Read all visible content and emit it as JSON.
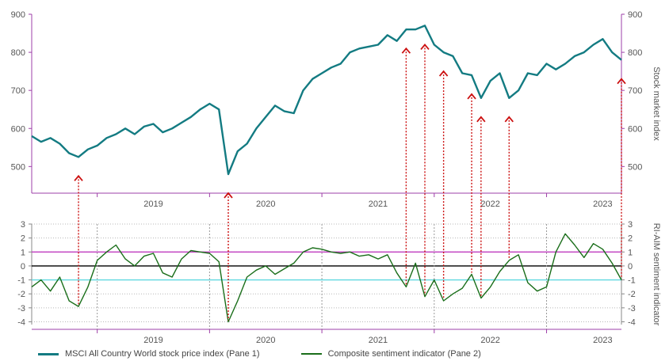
{
  "chart_data": [
    {
      "type": "line",
      "pane": 1,
      "ylabel": "Stock market index",
      "ylim": [
        430,
        900
      ],
      "yticks": [
        500,
        600,
        700,
        800,
        900
      ],
      "x_tick_labels": [
        "2019",
        "2020",
        "2021",
        "2022",
        "2023"
      ],
      "xlim": [
        "2018-06",
        "2023-09"
      ],
      "series": [
        {
          "name": "MSCI All Country World stock price index (Pane 1)",
          "color": "#137b82",
          "points": [
            [
              "2018-06",
              580
            ],
            [
              "2018-07",
              565
            ],
            [
              "2018-08",
              575
            ],
            [
              "2018-09",
              560
            ],
            [
              "2018-10",
              535
            ],
            [
              "2018-11",
              525
            ],
            [
              "2018-12",
              545
            ],
            [
              "2019-01",
              555
            ],
            [
              "2019-02",
              575
            ],
            [
              "2019-03",
              585
            ],
            [
              "2019-04",
              600
            ],
            [
              "2019-05",
              585
            ],
            [
              "2019-06",
              605
            ],
            [
              "2019-07",
              612
            ],
            [
              "2019-08",
              590
            ],
            [
              "2019-09",
              600
            ],
            [
              "2019-10",
              615
            ],
            [
              "2019-11",
              630
            ],
            [
              "2019-12",
              650
            ],
            [
              "2020-01",
              665
            ],
            [
              "2020-02",
              650
            ],
            [
              "2020-03",
              480
            ],
            [
              "2020-04",
              540
            ],
            [
              "2020-05",
              560
            ],
            [
              "2020-06",
              600
            ],
            [
              "2020-07",
              630
            ],
            [
              "2020-08",
              660
            ],
            [
              "2020-09",
              645
            ],
            [
              "2020-10",
              640
            ],
            [
              "2020-11",
              700
            ],
            [
              "2020-12",
              730
            ],
            [
              "2021-01",
              745
            ],
            [
              "2021-02",
              760
            ],
            [
              "2021-03",
              770
            ],
            [
              "2021-04",
              800
            ],
            [
              "2021-05",
              810
            ],
            [
              "2021-06",
              815
            ],
            [
              "2021-07",
              820
            ],
            [
              "2021-08",
              845
            ],
            [
              "2021-09",
              830
            ],
            [
              "2021-10",
              860
            ],
            [
              "2021-11",
              860
            ],
            [
              "2021-12",
              870
            ],
            [
              "2022-01",
              820
            ],
            [
              "2022-02",
              800
            ],
            [
              "2022-03",
              790
            ],
            [
              "2022-04",
              745
            ],
            [
              "2022-05",
              740
            ],
            [
              "2022-06",
              680
            ],
            [
              "2022-07",
              725
            ],
            [
              "2022-08",
              745
            ],
            [
              "2022-09",
              680
            ],
            [
              "2022-10",
              700
            ],
            [
              "2022-11",
              745
            ],
            [
              "2022-12",
              740
            ],
            [
              "2023-01",
              770
            ],
            [
              "2023-02",
              755
            ],
            [
              "2023-03",
              770
            ],
            [
              "2023-04",
              790
            ],
            [
              "2023-05",
              800
            ],
            [
              "2023-06",
              820
            ],
            [
              "2023-07",
              835
            ],
            [
              "2023-08",
              800
            ],
            [
              "2023-09",
              780
            ]
          ]
        }
      ]
    },
    {
      "type": "line",
      "pane": 2,
      "ylabel": "RI-AIM sentiment indicator",
      "ylim": [
        -4.2,
        3
      ],
      "yticks": [
        -4,
        -3,
        -2,
        -1,
        0,
        1,
        2,
        3
      ],
      "x_tick_labels": [
        "2019",
        "2020",
        "2021",
        "2022",
        "2023"
      ],
      "xlim": [
        "2018-06",
        "2023-09"
      ],
      "reference_lines": [
        {
          "value": 1,
          "color": "#c03cc0"
        },
        {
          "value": 0,
          "color": "#000000"
        },
        {
          "value": -1,
          "color": "#5fd8e0"
        }
      ],
      "series": [
        {
          "name": "Composite sentiment indicator (Pane 2)",
          "color": "#1a6e1a",
          "points": [
            [
              "2018-06",
              -1.5
            ],
            [
              "2018-07",
              -1.0
            ],
            [
              "2018-08",
              -1.8
            ],
            [
              "2018-09",
              -0.8
            ],
            [
              "2018-10",
              -2.5
            ],
            [
              "2018-11",
              -2.9
            ],
            [
              "2018-12",
              -1.5
            ],
            [
              "2019-01",
              0.4
            ],
            [
              "2019-02",
              1.0
            ],
            [
              "2019-03",
              1.5
            ],
            [
              "2019-04",
              0.5
            ],
            [
              "2019-05",
              0.0
            ],
            [
              "2019-06",
              0.7
            ],
            [
              "2019-07",
              0.9
            ],
            [
              "2019-08",
              -0.5
            ],
            [
              "2019-09",
              -0.8
            ],
            [
              "2019-10",
              0.5
            ],
            [
              "2019-11",
              1.1
            ],
            [
              "2019-12",
              1.0
            ],
            [
              "2020-01",
              0.9
            ],
            [
              "2020-02",
              0.3
            ],
            [
              "2020-03",
              -4.0
            ],
            [
              "2020-04",
              -2.5
            ],
            [
              "2020-05",
              -0.8
            ],
            [
              "2020-06",
              -0.3
            ],
            [
              "2020-07",
              0.0
            ],
            [
              "2020-08",
              -0.6
            ],
            [
              "2020-09",
              -0.2
            ],
            [
              "2020-10",
              0.2
            ],
            [
              "2020-11",
              1.0
            ],
            [
              "2020-12",
              1.3
            ],
            [
              "2021-01",
              1.2
            ],
            [
              "2021-02",
              1.0
            ],
            [
              "2021-03",
              0.9
            ],
            [
              "2021-04",
              1.0
            ],
            [
              "2021-05",
              0.7
            ],
            [
              "2021-06",
              0.8
            ],
            [
              "2021-07",
              0.5
            ],
            [
              "2021-08",
              0.8
            ],
            [
              "2021-09",
              -0.5
            ],
            [
              "2021-10",
              -1.5
            ],
            [
              "2021-11",
              0.2
            ],
            [
              "2021-12",
              -2.2
            ],
            [
              "2022-01",
              -1.0
            ],
            [
              "2022-02",
              -2.5
            ],
            [
              "2022-03",
              -2.0
            ],
            [
              "2022-04",
              -1.6
            ],
            [
              "2022-05",
              -0.6
            ],
            [
              "2022-06",
              -2.3
            ],
            [
              "2022-07",
              -1.5
            ],
            [
              "2022-08",
              -0.4
            ],
            [
              "2022-09",
              0.4
            ],
            [
              "2022-10",
              0.8
            ],
            [
              "2022-11",
              -1.2
            ],
            [
              "2022-12",
              -1.8
            ],
            [
              "2023-01",
              -1.5
            ],
            [
              "2023-02",
              1.0
            ],
            [
              "2023-03",
              2.3
            ],
            [
              "2023-04",
              1.5
            ],
            [
              "2023-05",
              0.6
            ],
            [
              "2023-06",
              1.6
            ],
            [
              "2023-07",
              1.2
            ],
            [
              "2023-08",
              0.2
            ],
            [
              "2023-09",
              -1.0
            ]
          ]
        }
      ]
    }
  ],
  "markers": [
    "2018-11",
    "2020-03",
    "2021-10",
    "2021-12",
    "2022-02",
    "2022-05",
    "2022-06",
    "2022-09",
    "2023-09"
  ],
  "legend": [
    {
      "label": "MSCI All Country World stock price index (Pane 1)",
      "color": "#137b82"
    },
    {
      "label": "Composite sentiment indicator (Pane 2)",
      "color": "#1a6e1a"
    }
  ]
}
